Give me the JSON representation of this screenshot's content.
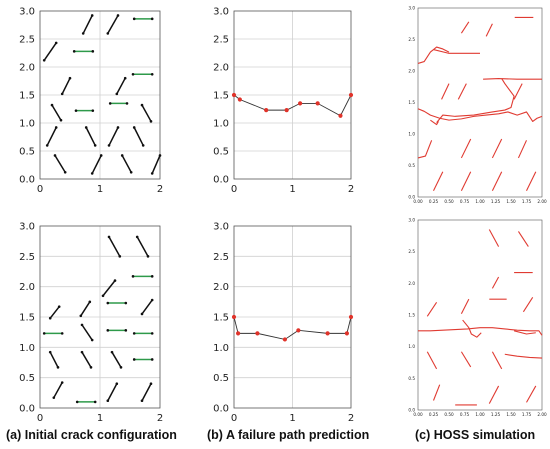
{
  "captions": {
    "a": "(a) Initial crack configuration",
    "b": "(b) A failure path prediction",
    "c": "(c) HOSS simulation"
  },
  "colors": {
    "crack": "#111111",
    "green": "#2e9a4a",
    "path_line": "#333333",
    "path_point": "#e0332a",
    "hoss": "#e03b32",
    "grid": "#d0d0d0",
    "frame": "#555555"
  },
  "chart_data": [
    {
      "type": "scatter",
      "panel": "a-top",
      "xlim": [
        0,
        2
      ],
      "ylim": [
        0,
        3
      ],
      "xticks": [
        "0",
        "1",
        "2"
      ],
      "yticks": [
        "0.0",
        "0.5",
        "1.0",
        "1.5",
        "2.0",
        "2.5",
        "3.0"
      ],
      "cracks": [
        [
          [
            0.07,
            2.12
          ],
          [
            0.27,
            2.43
          ]
        ],
        [
          [
            0.72,
            2.6
          ],
          [
            0.87,
            2.92
          ]
        ],
        [
          [
            1.13,
            2.6
          ],
          [
            1.3,
            2.92
          ]
        ],
        [
          [
            1.57,
            2.86
          ],
          [
            1.87,
            2.86
          ]
        ],
        [
          [
            0.37,
            1.52
          ],
          [
            0.5,
            1.8
          ]
        ],
        [
          [
            0.57,
            2.28
          ],
          [
            0.88,
            2.28
          ]
        ],
        [
          [
            1.28,
            1.52
          ],
          [
            1.42,
            1.8
          ]
        ],
        [
          [
            1.55,
            1.87
          ],
          [
            1.87,
            1.87
          ]
        ],
        [
          [
            0.2,
            1.32
          ],
          [
            0.35,
            1.05
          ]
        ],
        [
          [
            0.6,
            1.22
          ],
          [
            0.88,
            1.22
          ]
        ],
        [
          [
            1.17,
            1.35
          ],
          [
            1.45,
            1.35
          ]
        ],
        [
          [
            1.7,
            1.32
          ],
          [
            1.85,
            1.03
          ]
        ],
        [
          [
            0.12,
            0.6
          ],
          [
            0.27,
            0.92
          ]
        ],
        [
          [
            0.77,
            0.92
          ],
          [
            0.92,
            0.6
          ]
        ],
        [
          [
            1.15,
            0.6
          ],
          [
            1.3,
            0.92
          ]
        ],
        [
          [
            1.57,
            0.92
          ],
          [
            1.72,
            0.6
          ]
        ],
        [
          [
            0.25,
            0.42
          ],
          [
            0.42,
            0.12
          ]
        ],
        [
          [
            0.87,
            0.1
          ],
          [
            1.02,
            0.42
          ]
        ],
        [
          [
            1.37,
            0.42
          ],
          [
            1.52,
            0.12
          ]
        ],
        [
          [
            1.87,
            0.1
          ],
          [
            2.0,
            0.42
          ]
        ]
      ],
      "green_cracks": [
        3,
        5,
        7,
        9,
        10
      ]
    },
    {
      "type": "line",
      "panel": "b-top",
      "xlim": [
        0,
        2
      ],
      "ylim": [
        0,
        3
      ],
      "xticks": [
        "0",
        "1",
        "2"
      ],
      "yticks": [
        "0.0",
        "0.5",
        "1.0",
        "1.5",
        "2.0",
        "2.5",
        "3.0"
      ],
      "x": [
        0.0,
        0.1,
        0.55,
        0.9,
        1.13,
        1.43,
        1.82,
        2.0
      ],
      "y": [
        1.5,
        1.42,
        1.23,
        1.23,
        1.35,
        1.35,
        1.13,
        1.5
      ]
    },
    {
      "type": "scatter",
      "panel": "c-top",
      "xlim": [
        0,
        2
      ],
      "ylim": [
        0,
        3
      ],
      "xticks": [
        "0.00",
        "0.25",
        "0.50",
        "0.75",
        "1.00",
        "1.25",
        "1.50",
        "1.75",
        "2.00"
      ],
      "yticks": [
        "0.0",
        "0.5",
        "1.0",
        "1.5",
        "2.0",
        "2.5",
        "3.0"
      ],
      "segments": [
        [
          [
            0.0,
            2.12
          ],
          [
            0.1,
            2.15
          ],
          [
            0.2,
            2.3
          ],
          [
            0.3,
            2.38
          ],
          [
            0.4,
            2.35
          ],
          [
            0.5,
            2.3
          ]
        ],
        [
          [
            0.25,
            2.34
          ],
          [
            0.5,
            2.28
          ],
          [
            0.7,
            2.28
          ],
          [
            1.0,
            2.28
          ]
        ],
        [
          [
            1.56,
            2.85
          ],
          [
            1.86,
            2.85
          ]
        ],
        [
          [
            1.05,
            1.87
          ],
          [
            1.3,
            1.88
          ],
          [
            1.6,
            1.87
          ],
          [
            2.0,
            1.87
          ]
        ],
        [
          [
            0.7,
            2.6
          ],
          [
            0.82,
            2.78
          ]
        ],
        [
          [
            1.1,
            2.55
          ],
          [
            1.2,
            2.75
          ]
        ],
        [
          [
            0.38,
            1.55
          ],
          [
            0.5,
            1.8
          ]
        ],
        [
          [
            0.65,
            1.55
          ],
          [
            0.78,
            1.8
          ]
        ],
        [
          [
            1.55,
            1.55
          ],
          [
            1.68,
            1.8
          ]
        ],
        [
          [
            0.0,
            1.4
          ],
          [
            0.1,
            1.36
          ],
          [
            0.2,
            1.3
          ],
          [
            0.35,
            1.25
          ],
          [
            0.5,
            1.22
          ],
          [
            0.7,
            1.24
          ],
          [
            0.9,
            1.28
          ],
          [
            1.1,
            1.3
          ],
          [
            1.3,
            1.32
          ],
          [
            1.45,
            1.35
          ],
          [
            1.6,
            1.3
          ],
          [
            1.75,
            1.35
          ],
          [
            1.85,
            1.2
          ],
          [
            1.92,
            1.25
          ],
          [
            2.0,
            1.28
          ]
        ],
        [
          [
            0.3,
            1.18
          ],
          [
            0.4,
            1.3
          ],
          [
            0.6,
            1.28
          ],
          [
            0.9,
            1.3
          ],
          [
            1.2,
            1.35
          ],
          [
            1.4,
            1.38
          ],
          [
            1.5,
            1.42
          ],
          [
            1.55,
            1.6
          ],
          [
            1.4,
            1.8
          ],
          [
            1.35,
            1.88
          ]
        ],
        [
          [
            0.2,
            1.22
          ],
          [
            0.3,
            1.15
          ],
          [
            0.33,
            1.2
          ]
        ],
        [
          [
            0.0,
            0.62
          ],
          [
            0.12,
            0.65
          ],
          [
            0.18,
            0.8
          ],
          [
            0.22,
            0.9
          ]
        ],
        [
          [
            0.7,
            0.62
          ],
          [
            0.85,
            0.92
          ]
        ],
        [
          [
            1.2,
            0.62
          ],
          [
            1.35,
            0.92
          ]
        ],
        [
          [
            1.62,
            0.62
          ],
          [
            1.75,
            0.9
          ]
        ],
        [
          [
            0.25,
            0.1
          ],
          [
            0.4,
            0.4
          ]
        ],
        [
          [
            0.7,
            0.1
          ],
          [
            0.85,
            0.4
          ]
        ],
        [
          [
            1.2,
            0.1
          ],
          [
            1.35,
            0.4
          ]
        ],
        [
          [
            1.75,
            0.1
          ],
          [
            1.9,
            0.4
          ]
        ]
      ]
    },
    {
      "type": "scatter",
      "panel": "a-bottom",
      "xlim": [
        0,
        2
      ],
      "ylim": [
        0,
        3
      ],
      "xticks": [
        "0",
        "1",
        "2"
      ],
      "yticks": [
        "0.0",
        "0.5",
        "1.0",
        "1.5",
        "2.0",
        "2.5",
        "3.0"
      ],
      "cracks": [
        [
          [
            1.15,
            2.82
          ],
          [
            1.33,
            2.5
          ]
        ],
        [
          [
            1.62,
            2.82
          ],
          [
            1.8,
            2.5
          ]
        ],
        [
          [
            1.05,
            1.85
          ],
          [
            1.25,
            2.1
          ]
        ],
        [
          [
            1.55,
            2.17
          ],
          [
            1.87,
            2.17
          ]
        ],
        [
          [
            0.17,
            1.48
          ],
          [
            0.32,
            1.67
          ]
        ],
        [
          [
            0.68,
            1.52
          ],
          [
            0.83,
            1.75
          ]
        ],
        [
          [
            1.13,
            1.73
          ],
          [
            1.43,
            1.73
          ]
        ],
        [
          [
            1.7,
            1.55
          ],
          [
            1.87,
            1.78
          ]
        ],
        [
          [
            0.07,
            1.23
          ],
          [
            0.37,
            1.23
          ]
        ],
        [
          [
            0.7,
            1.37
          ],
          [
            0.87,
            1.12
          ]
        ],
        [
          [
            1.13,
            1.28
          ],
          [
            1.43,
            1.28
          ]
        ],
        [
          [
            1.57,
            1.23
          ],
          [
            1.87,
            1.23
          ]
        ],
        [
          [
            0.17,
            0.92
          ],
          [
            0.3,
            0.67
          ]
        ],
        [
          [
            0.7,
            0.92
          ],
          [
            0.85,
            0.67
          ]
        ],
        [
          [
            1.2,
            0.92
          ],
          [
            1.35,
            0.67
          ]
        ],
        [
          [
            1.57,
            0.8
          ],
          [
            1.87,
            0.8
          ]
        ],
        [
          [
            0.23,
            0.17
          ],
          [
            0.37,
            0.42
          ]
        ],
        [
          [
            0.62,
            0.1
          ],
          [
            0.92,
            0.1
          ]
        ],
        [
          [
            1.13,
            0.12
          ],
          [
            1.28,
            0.4
          ]
        ],
        [
          [
            1.7,
            0.12
          ],
          [
            1.85,
            0.4
          ]
        ]
      ],
      "green_cracks": [
        3,
        6,
        8,
        10,
        11,
        15,
        17
      ]
    },
    {
      "type": "line",
      "panel": "b-bottom",
      "xlim": [
        0,
        2
      ],
      "ylim": [
        0,
        3
      ],
      "xticks": [
        "0",
        "1",
        "2"
      ],
      "yticks": [
        "0.0",
        "0.5",
        "1.0",
        "1.5",
        "2.0",
        "2.5",
        "3.0"
      ],
      "x": [
        0.0,
        0.07,
        0.4,
        0.87,
        1.1,
        1.6,
        1.93,
        2.0
      ],
      "y": [
        1.5,
        1.23,
        1.23,
        1.13,
        1.28,
        1.23,
        1.23,
        1.5
      ]
    },
    {
      "type": "scatter",
      "panel": "c-bottom",
      "xlim": [
        0,
        2
      ],
      "ylim": [
        0,
        3
      ],
      "xticks": [
        "0.00",
        "0.25",
        "0.50",
        "0.75",
        "1.00",
        "1.25",
        "1.50",
        "1.75",
        "2.00"
      ],
      "yticks": [
        "0.0",
        "0.5",
        "1.0",
        "1.5",
        "2.0",
        "2.5",
        "3.0"
      ],
      "segments": [
        [
          [
            1.15,
            2.85
          ],
          [
            1.3,
            2.58
          ]
        ],
        [
          [
            1.62,
            2.82
          ],
          [
            1.78,
            2.58
          ]
        ],
        [
          [
            1.2,
            1.92
          ],
          [
            1.3,
            2.1
          ]
        ],
        [
          [
            1.55,
            2.17
          ],
          [
            1.85,
            2.17
          ]
        ],
        [
          [
            0.15,
            1.48
          ],
          [
            0.3,
            1.7
          ]
        ],
        [
          [
            0.7,
            1.52
          ],
          [
            0.82,
            1.75
          ]
        ],
        [
          [
            1.15,
            1.75
          ],
          [
            1.43,
            1.75
          ]
        ],
        [
          [
            1.7,
            1.55
          ],
          [
            1.85,
            1.78
          ]
        ],
        [
          [
            0.0,
            1.25
          ],
          [
            0.2,
            1.25
          ],
          [
            0.4,
            1.26
          ],
          [
            0.6,
            1.27
          ],
          [
            0.8,
            1.28
          ],
          [
            1.0,
            1.3
          ],
          [
            1.2,
            1.3
          ],
          [
            1.4,
            1.28
          ],
          [
            1.6,
            1.26
          ],
          [
            1.8,
            1.25
          ],
          [
            1.95,
            1.25
          ],
          [
            2.0,
            1.18
          ]
        ],
        [
          [
            0.72,
            1.42
          ],
          [
            0.82,
            1.3
          ],
          [
            0.86,
            1.2
          ],
          [
            0.95,
            1.15
          ],
          [
            1.02,
            1.22
          ]
        ],
        [
          [
            1.55,
            1.25
          ],
          [
            1.75,
            1.2
          ],
          [
            1.9,
            1.22
          ]
        ],
        [
          [
            0.15,
            0.92
          ],
          [
            0.3,
            0.65
          ]
        ],
        [
          [
            0.7,
            0.92
          ],
          [
            0.85,
            0.68
          ]
        ],
        [
          [
            1.2,
            0.92
          ],
          [
            1.35,
            0.65
          ]
        ],
        [
          [
            1.4,
            0.88
          ],
          [
            1.6,
            0.85
          ],
          [
            1.8,
            0.83
          ],
          [
            2.0,
            0.82
          ]
        ],
        [
          [
            0.25,
            0.15
          ],
          [
            0.35,
            0.4
          ]
        ],
        [
          [
            0.6,
            0.08
          ],
          [
            0.95,
            0.08
          ]
        ],
        [
          [
            1.15,
            0.1
          ],
          [
            1.3,
            0.38
          ]
        ],
        [
          [
            1.75,
            0.12
          ],
          [
            1.9,
            0.38
          ]
        ]
      ]
    }
  ]
}
